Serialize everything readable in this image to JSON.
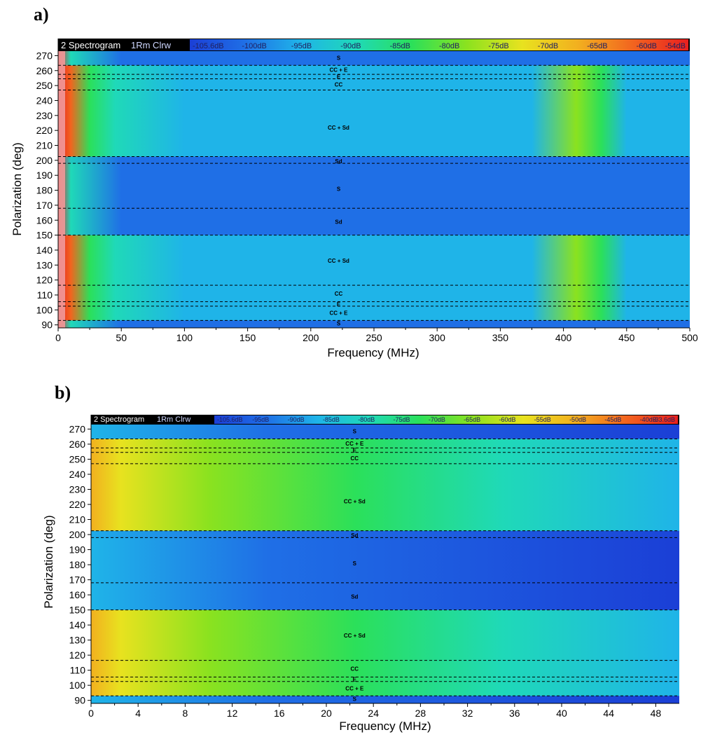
{
  "figure": {
    "colors": {
      "colormap": [
        "#1b3fd6",
        "#1f6fe6",
        "#1fb4e8",
        "#1fd9b8",
        "#2be05a",
        "#8be21f",
        "#e8e21f",
        "#f2b01f",
        "#f2641f",
        "#e81f1f"
      ],
      "lowband": "#f09a9a"
    }
  },
  "chart_data": [
    {
      "type": "heatmap",
      "panel_label": "a)",
      "header": {
        "trace": "2 Spectrogram",
        "mode": "1Rm Clrw"
      },
      "colorbar_labels": [
        "-105.6dB",
        "-100dB",
        "-95dB",
        "-90dB",
        "-85dB",
        "-80dB",
        "-75dB",
        "-70dB",
        "-65dB",
        "-60dB",
        "-54dB"
      ],
      "colorbar_range_db": [
        -105.6,
        -54
      ],
      "xlabel": "Frequency (MHz)",
      "ylabel": "Polarization (deg)",
      "xlim": [
        0,
        500
      ],
      "ylim": [
        88,
        273
      ],
      "xticks": [
        0,
        50,
        100,
        150,
        200,
        250,
        300,
        350,
        400,
        450,
        500
      ],
      "yticks": [
        90,
        100,
        110,
        120,
        130,
        140,
        150,
        160,
        170,
        180,
        190,
        200,
        210,
        220,
        230,
        240,
        250,
        260,
        270
      ],
      "boundaries_deg": [
        93,
        102.5,
        105.5,
        116.5,
        150,
        168,
        198,
        202.5,
        247,
        254.5,
        257.5,
        263.5
      ],
      "region_labels": [
        {
          "text": "S",
          "deg": 268.5
        },
        {
          "text": "CC + E",
          "deg": 260.5
        },
        {
          "text": "E",
          "deg": 256
        },
        {
          "text": "CC",
          "deg": 250.8
        },
        {
          "text": "CC + Sd",
          "deg": 222
        },
        {
          "text": "Sd",
          "deg": 199.5
        },
        {
          "text": "S",
          "deg": 181
        },
        {
          "text": "Sd",
          "deg": 159
        },
        {
          "text": "CC + Sd",
          "deg": 133
        },
        {
          "text": "CC",
          "deg": 111
        },
        {
          "text": "E",
          "deg": 104
        },
        {
          "text": "CC + E",
          "deg": 98
        },
        {
          "text": "S",
          "deg": 91
        }
      ]
    },
    {
      "type": "heatmap",
      "panel_label": "b)",
      "header": {
        "trace": "2 Spectrogram",
        "mode": "1Rm Clrw"
      },
      "colorbar_labels": [
        "-105.6dB",
        "-95dB",
        "-90dB",
        "-85dB",
        "-80dB",
        "-75dB",
        "-70dB",
        "-65dB",
        "-60dB",
        "-55dB",
        "-50dB",
        "-45dB",
        "-40dB",
        "-33.6dB"
      ],
      "colorbar_range_db": [
        -105.6,
        -33.6
      ],
      "xlabel": "Frequency (MHz)",
      "ylabel": "Polarization (deg)",
      "xlim": [
        0,
        50
      ],
      "ylim": [
        88,
        273
      ],
      "xticks": [
        0,
        4,
        8,
        12,
        16,
        20,
        24,
        28,
        32,
        36,
        40,
        44,
        48
      ],
      "yticks": [
        90,
        100,
        110,
        120,
        130,
        140,
        150,
        160,
        170,
        180,
        190,
        200,
        210,
        220,
        230,
        240,
        250,
        260,
        270
      ],
      "boundaries_deg": [
        93,
        102.5,
        105.5,
        116.5,
        150,
        168,
        198,
        202.5,
        247,
        254.5,
        257.5,
        263.5
      ],
      "region_labels": [
        {
          "text": "S",
          "deg": 268.5
        },
        {
          "text": "CC + E",
          "deg": 260.5
        },
        {
          "text": "E",
          "deg": 256
        },
        {
          "text": "CC",
          "deg": 250.8
        },
        {
          "text": "CC + Sd",
          "deg": 222
        },
        {
          "text": "Sd",
          "deg": 199.5
        },
        {
          "text": "S",
          "deg": 181
        },
        {
          "text": "Sd",
          "deg": 159
        },
        {
          "text": "CC + Sd",
          "deg": 133
        },
        {
          "text": "CC",
          "deg": 111
        },
        {
          "text": "E",
          "deg": 104
        },
        {
          "text": "CC + E",
          "deg": 98
        },
        {
          "text": "S",
          "deg": 91
        }
      ]
    }
  ]
}
